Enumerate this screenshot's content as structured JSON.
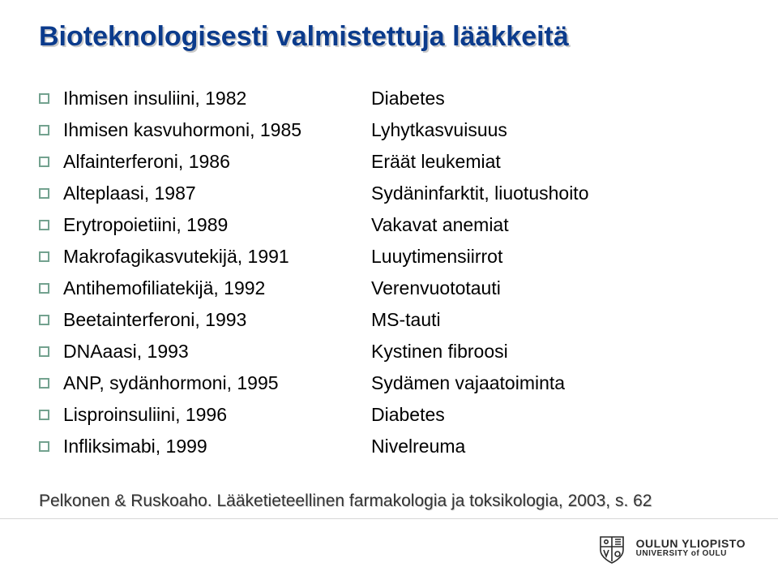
{
  "colors": {
    "title": "#0b3b8c",
    "title_shadow": "#c9c9c9",
    "bullet_border": "#73a28f",
    "body_text": "#000000",
    "footer_text": "#333333",
    "footer_shadow": "#cfcfcf",
    "logo_text": "#2b2b2b",
    "logo_stroke": "#2b2b2b",
    "hr": "#d8d8d8",
    "background": "#ffffff"
  },
  "typography": {
    "title_fontsize": 34,
    "body_fontsize": 23,
    "footer_fontsize": 21,
    "logo_main_fontsize": 14,
    "logo_sub_fontsize": 10
  },
  "title": "Bioteknologisesti valmistettuja lääkkeitä",
  "rows": [
    {
      "left": "Ihmisen insuliini, 1982",
      "right": "Diabetes"
    },
    {
      "left": "Ihmisen kasvuhormoni, 1985",
      "right": "Lyhytkasvuisuus"
    },
    {
      "left": "Alfainterferoni, 1986",
      "right": "Eräät leukemiat"
    },
    {
      "left": "Alteplaasi, 1987",
      "right": "Sydäninfarktit, liuotushoito"
    },
    {
      "left": "Erytropoietiini, 1989",
      "right": "Vakavat anemiat"
    },
    {
      "left": "Makrofagikasvutekijä, 1991",
      "right": "Luuytimensiirrot"
    },
    {
      "left": "Antihemofiliatekijä, 1992",
      "right": "Verenvuototauti"
    },
    {
      "left": "Beetainterferoni, 1993",
      "right": "MS-tauti"
    },
    {
      "left": "DNAaasi, 1993",
      "right": "Kystinen fibroosi"
    },
    {
      "left": "ANP, sydänhormoni, 1995",
      "right": "Sydämen vajaatoiminta"
    },
    {
      "left": "Lisproinsuliini, 1996",
      "right": "Diabetes"
    },
    {
      "left": "Infliksimabi, 1999",
      "right": "Nivelreuma"
    }
  ],
  "footer": "Pelkonen & Ruskoaho. Lääketieteellinen farmakologia ja toksikologia, 2003, s. 62",
  "logo": {
    "main": "OULUN YLIOPISTO",
    "sub": "UNIVERSITY of OULU"
  }
}
